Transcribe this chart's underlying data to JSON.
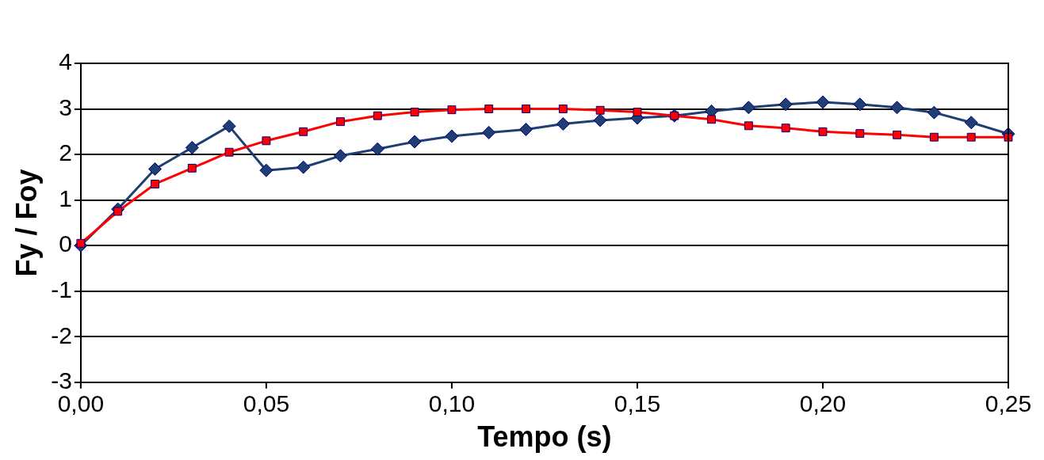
{
  "chart_data": {
    "type": "line",
    "xlabel": "Tempo (s)",
    "ylabel": "Fy / Foy",
    "categories": [
      "0,00",
      null,
      null,
      null,
      null,
      "0,05",
      null,
      null,
      null,
      null,
      "0,10",
      null,
      null,
      null,
      null,
      "0,15",
      null,
      null,
      null,
      null,
      "0,20",
      null,
      null,
      null,
      null,
      "0,25"
    ],
    "series": [
      {
        "color": "#ff0000",
        "marker": "square",
        "values": [
          0.05,
          0.75,
          1.35,
          1.7,
          2.05,
          2.3,
          2.5,
          2.72,
          2.85,
          2.93,
          2.98,
          3.0,
          3.0,
          3.0,
          2.97,
          2.93,
          2.85,
          2.77,
          2.63,
          2.58,
          2.5,
          2.46,
          2.43,
          2.38,
          2.38,
          2.38
        ]
      },
      {
        "color": "#1f3f73",
        "marker": "diamond",
        "values": [
          0,
          0.8,
          1.68,
          2.15,
          2.62,
          1.65,
          1.72,
          1.97,
          2.12,
          2.28,
          2.4,
          2.48,
          2.55,
          2.67,
          2.75,
          2.8,
          2.85,
          2.95,
          3.03,
          3.1,
          3.15,
          3.1,
          3.03,
          2.92,
          2.7,
          2.45
        ]
      }
    ],
    "ylim": [
      -3,
      4
    ],
    "yticks": [
      -3,
      -2,
      -1,
      0,
      1,
      2,
      3,
      4
    ],
    "grid": "y",
    "legend": false
  }
}
